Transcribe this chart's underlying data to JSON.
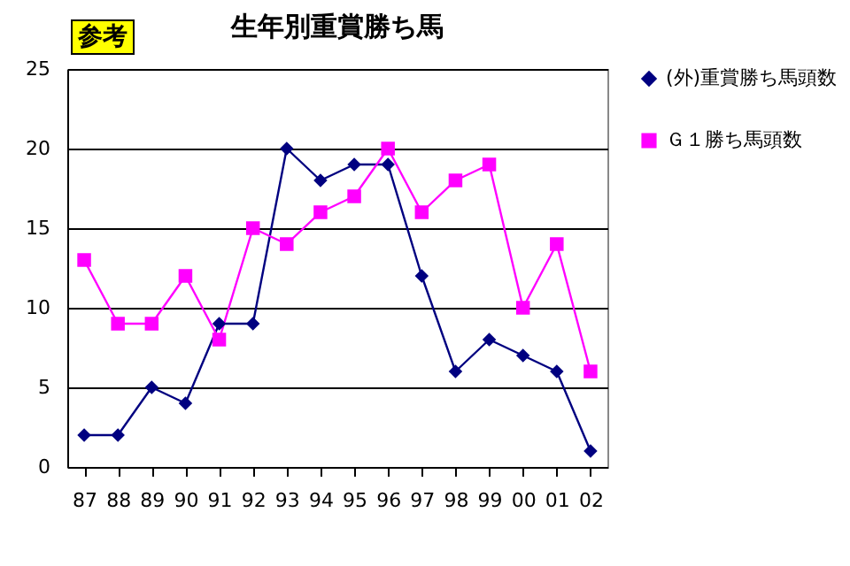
{
  "chart_data": {
    "type": "line",
    "title": "生年別重賞勝ち馬",
    "annotations": [
      "参考"
    ],
    "categories": [
      "87",
      "88",
      "89",
      "90",
      "91",
      "92",
      "93",
      "94",
      "95",
      "96",
      "97",
      "98",
      "99",
      "00",
      "01",
      "02"
    ],
    "series": [
      {
        "name": "(外)重賞勝ち馬頭数",
        "color": "#000080",
        "marker": "diamond",
        "values": [
          2,
          2,
          5,
          4,
          9,
          9,
          20,
          18,
          19,
          19,
          12,
          6,
          8,
          7,
          6,
          1
        ]
      },
      {
        "name": "Ｇ１勝ち馬頭数",
        "color": "#ff00ff",
        "marker": "square",
        "values": [
          13,
          9,
          9,
          12,
          8,
          15,
          14,
          16,
          17,
          20,
          16,
          18,
          19,
          10,
          14,
          6
        ]
      }
    ],
    "ylim": [
      0,
      25
    ],
    "yticks": [
      0,
      5,
      10,
      15,
      20,
      25
    ],
    "grid": "y",
    "legend": "right",
    "line_style": "solid"
  }
}
